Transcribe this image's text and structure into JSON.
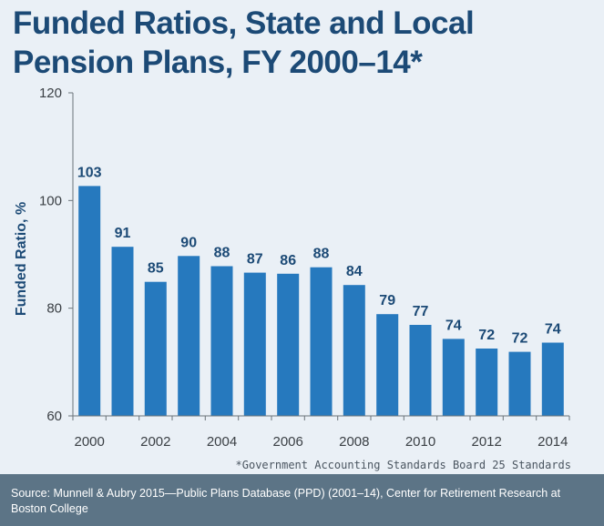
{
  "title": "Funded Ratios, State and Local Pension Plans, FY 2000–14*",
  "footnote": "*Government Accounting Standards Board 25 Standards",
  "source": "Source: Munnell & Aubry 2015—Public Plans Database (PPD) (2001–14), Center for Retirement Research at Boston College",
  "colors": {
    "bar": "#2679be",
    "label": "#1c4a76",
    "axis": "#6b737a",
    "tick_text": "#3a3f44",
    "background": "#eaf0f6",
    "source_bar": "#5c7486"
  },
  "chart_data": {
    "type": "bar",
    "title": "Funded Ratios, State and Local Pension Plans, FY 2000–14*",
    "xlabel": "",
    "ylabel": "Funded Ratio, %",
    "ylim": [
      60,
      120
    ],
    "yticks": [
      60,
      80,
      100,
      120
    ],
    "categories": [
      "2000",
      "2001",
      "2002",
      "2003",
      "2004",
      "2005",
      "2006",
      "2007",
      "2008",
      "2009",
      "2010",
      "2011",
      "2012",
      "2013",
      "2014"
    ],
    "xtick_labels": [
      "2000",
      "",
      "2002",
      "",
      "2004",
      "",
      "2006",
      "",
      "2008",
      "",
      "2010",
      "",
      "2012",
      "",
      "2014"
    ],
    "values": [
      102.7,
      91.4,
      84.9,
      89.7,
      87.8,
      86.6,
      86.4,
      87.6,
      84.3,
      78.9,
      76.9,
      74.3,
      72.5,
      71.9,
      73.6
    ],
    "data_labels": [
      "103",
      "91",
      "85",
      "90",
      "88",
      "87",
      "86",
      "88",
      "84",
      "79",
      "77",
      "74",
      "72",
      "72",
      "74"
    ],
    "grid": false,
    "legend": "none"
  }
}
